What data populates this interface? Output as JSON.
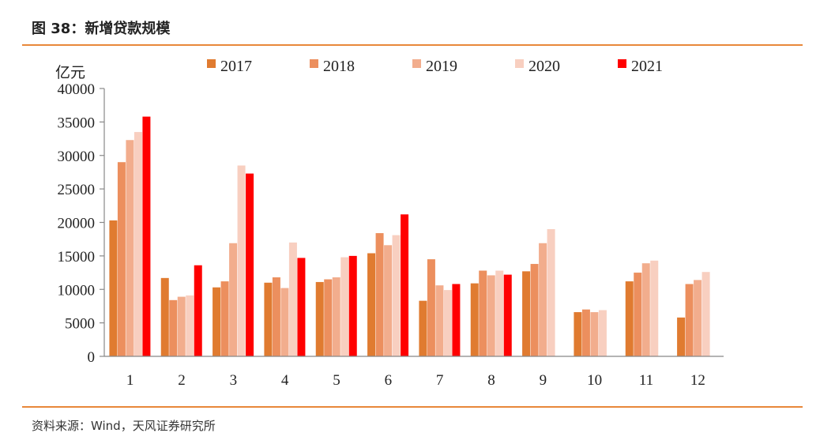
{
  "header": {
    "title": "图 38：新增贷款规模"
  },
  "footer": {
    "source": "资料来源：Wind，天风证券研究所"
  },
  "colors": {
    "rule": "#e8883a",
    "axis": "#888888"
  },
  "chart_data": {
    "type": "bar",
    "ylabel": "亿元",
    "ylim": [
      0,
      40000
    ],
    "yticks": [
      0,
      5000,
      10000,
      15000,
      20000,
      25000,
      30000,
      35000,
      40000
    ],
    "legend_position": "top",
    "grid": false,
    "categories": [
      "1",
      "2",
      "3",
      "4",
      "5",
      "6",
      "7",
      "8",
      "9",
      "10",
      "11",
      "12"
    ],
    "series": [
      {
        "name": "2017",
        "color": "#e07b30",
        "values": [
          20300,
          11700,
          10300,
          11000,
          11100,
          15400,
          8300,
          10900,
          12700,
          6600,
          11200,
          5800
        ]
      },
      {
        "name": "2018",
        "color": "#ec8f5e",
        "values": [
          29000,
          8400,
          11200,
          11800,
          11500,
          18400,
          14500,
          12800,
          13800,
          7000,
          12500,
          10800
        ]
      },
      {
        "name": "2019",
        "color": "#f2ad8d",
        "values": [
          32300,
          8900,
          16900,
          10200,
          11800,
          16600,
          10600,
          12100,
          16900,
          6600,
          13900,
          11400
        ]
      },
      {
        "name": "2020",
        "color": "#f8cfc0",
        "values": [
          33500,
          9100,
          28500,
          17000,
          14800,
          18100,
          9900,
          12800,
          19000,
          6900,
          14300,
          12600
        ]
      },
      {
        "name": "2021",
        "color": "#ff0000",
        "values": [
          35800,
          13600,
          27300,
          14700,
          15000,
          21200,
          10800,
          12200,
          null,
          null,
          null,
          null
        ]
      }
    ]
  }
}
